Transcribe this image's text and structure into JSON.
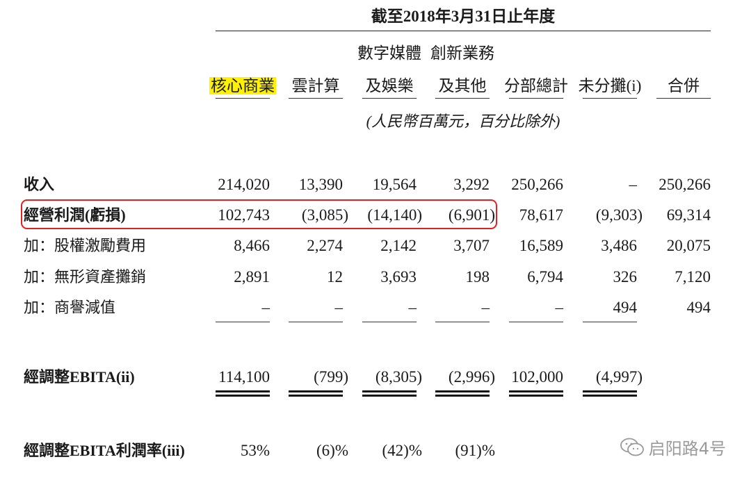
{
  "period_title": "截至2018年3月31日止年度",
  "columns": [
    {
      "line1": "",
      "line2": "核心商業",
      "highlight": true
    },
    {
      "line1": "",
      "line2": "雲計算",
      "highlight": false
    },
    {
      "line1": "數字媒體",
      "line2": "及娛樂",
      "highlight": false
    },
    {
      "line1": "創新業務",
      "line2": "及其他",
      "highlight": false
    },
    {
      "line1": "",
      "line2": "分部總計",
      "highlight": false
    },
    {
      "line1": "",
      "line2": "未分攤(i)",
      "highlight": false
    },
    {
      "line1": "",
      "line2": "合併",
      "highlight": false
    }
  ],
  "units": "(人民幣百萬元，百分比除外)",
  "rows": [
    {
      "label": "收入",
      "bold": true,
      "values": [
        "214,020",
        "13,390",
        "19,564",
        "3,292",
        "250,266",
        "–",
        "250,266"
      ]
    },
    {
      "label": "經營利潤(虧損)",
      "bold": true,
      "values": [
        "102,743",
        "(3,085)",
        "(14,140)",
        "(6,901)",
        "78,617",
        "(9,303)",
        "69,314"
      ]
    },
    {
      "label": "加：股權激勵費用",
      "bold": false,
      "values": [
        "8,466",
        "2,274",
        "2,142",
        "3,707",
        "16,589",
        "3,486",
        "20,075"
      ]
    },
    {
      "label": "加：無形資產攤銷",
      "bold": false,
      "values": [
        "2,891",
        "12",
        "3,693",
        "198",
        "6,794",
        "326",
        "7,120"
      ]
    },
    {
      "label": "加：商譽減值",
      "bold": false,
      "values": [
        "–",
        "–",
        "–",
        "–",
        "–",
        "494",
        "494"
      ]
    },
    {
      "label": "經調整EBITA(ii)",
      "bold": true,
      "values": [
        "114,100",
        "(799)",
        "(8,305)",
        "(2,996)",
        "102,000",
        "(4,997)",
        ""
      ]
    },
    {
      "label": "經調整EBITA利潤率(iii)",
      "bold": true,
      "values": [
        "53%",
        "(6)%",
        "(42)%",
        "(91)%",
        "",
        "",
        ""
      ]
    }
  ],
  "watermark": {
    "text": "启阳路4号",
    "icon": "wechat-icon"
  },
  "colors": {
    "highlight": "#fff200",
    "annotation_box": "#e02020",
    "watermark": "#9a9a9a"
  }
}
